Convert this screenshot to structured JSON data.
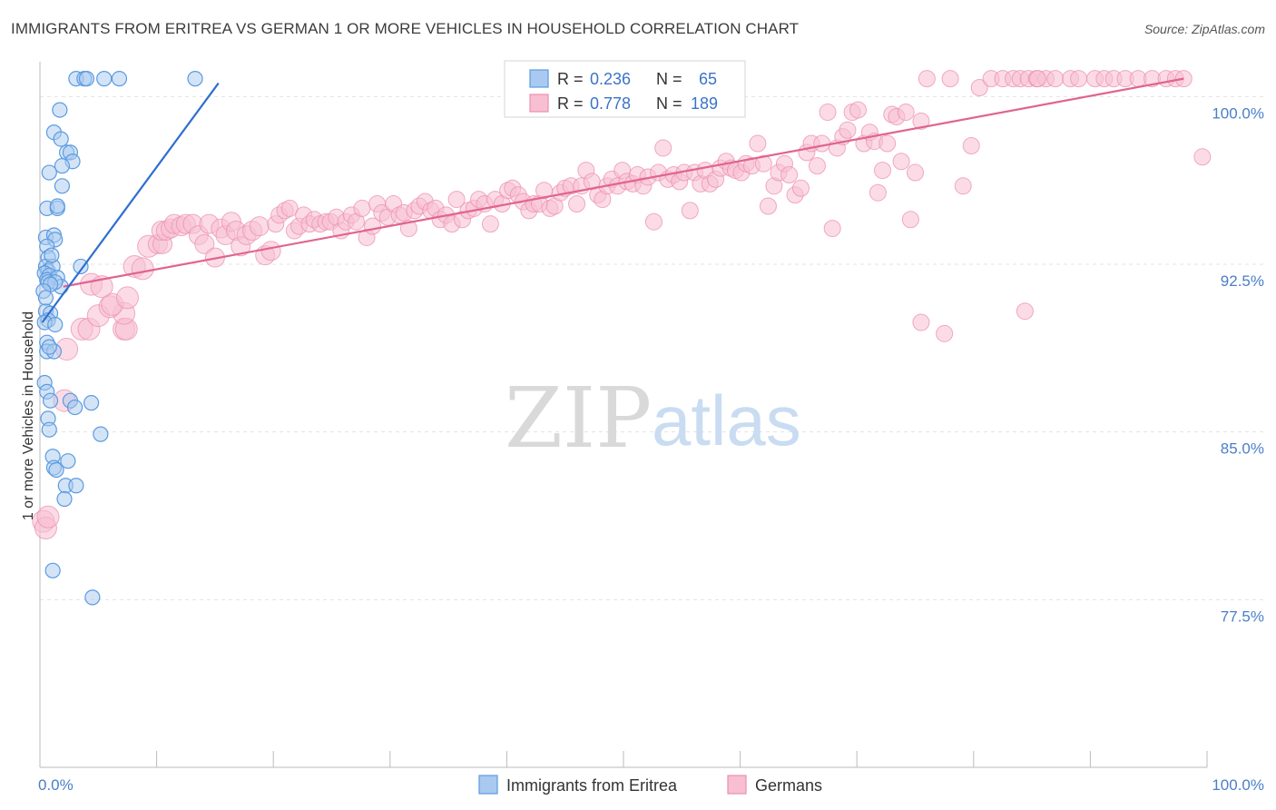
{
  "title": "IMMIGRANTS FROM ERITREA VS GERMAN 1 OR MORE VEHICLES IN HOUSEHOLD CORRELATION CHART",
  "source": "Source: ZipAtlas.com",
  "watermark": {
    "zip": "ZIP",
    "atlas": "atlas"
  },
  "colors": {
    "blue": "#5b9be0",
    "blue_fill": "#a9c9f0",
    "blue_line": "#2e6fcf",
    "pink": "#ec8fae",
    "pink_fill": "#f7bfd1",
    "pink_line": "#e0648f",
    "axis_text": "#4a7fc9",
    "grid": "#e3e3e3"
  },
  "legend_top": {
    "rows": [
      {
        "r_label": "R =",
        "r_value": "0.236",
        "n_label": "N =",
        "n_value": "65"
      },
      {
        "r_label": "R =",
        "r_value": "0.778",
        "n_label": "N =",
        "n_value": "189"
      }
    ]
  },
  "legend_bottom": [
    "Immigrants from Eritrea",
    "Germans"
  ],
  "chart_data": {
    "type": "scatter",
    "title": "IMMIGRANTS FROM ERITREA VS GERMAN 1 OR MORE VEHICLES IN HOUSEHOLD CORRELATION CHART",
    "xlabel": "",
    "ylabel": "1 or more Vehicles in Household",
    "xlim": [
      0,
      100
    ],
    "ylim": [
      70,
      101.8
    ],
    "x_tick_labels": [
      "0.0%",
      "100.0%"
    ],
    "y_ticks": [
      77.5,
      85.0,
      92.5,
      100.0
    ],
    "y_tick_labels": [
      "77.5%",
      "85.0%",
      "92.5%",
      "100.0%"
    ],
    "grid": true,
    "legend_placement": "top-center",
    "series": [
      {
        "name": "Immigrants from Eritrea",
        "r": 0.236,
        "n": 65,
        "trend": {
          "x0": 0.2,
          "y0": 89.9,
          "x1": 15.3,
          "y1": 100.6
        },
        "points": [
          [
            3.1,
            100.8
          ],
          [
            3.8,
            100.8
          ],
          [
            4.0,
            100.8
          ],
          [
            5.5,
            100.8
          ],
          [
            6.8,
            100.8
          ],
          [
            13.3,
            100.8
          ],
          [
            1.7,
            99.4
          ],
          [
            1.2,
            98.4
          ],
          [
            1.8,
            98.1
          ],
          [
            2.3,
            97.5
          ],
          [
            2.6,
            97.5
          ],
          [
            2.8,
            97.1
          ],
          [
            1.9,
            96.9
          ],
          [
            0.8,
            96.6
          ],
          [
            1.9,
            96.0
          ],
          [
            0.6,
            95.0
          ],
          [
            1.5,
            95.0
          ],
          [
            1.5,
            95.1
          ],
          [
            0.5,
            93.7
          ],
          [
            1.2,
            93.8
          ],
          [
            1.3,
            93.6
          ],
          [
            0.6,
            93.3
          ],
          [
            0.7,
            92.8
          ],
          [
            3.5,
            92.4
          ],
          [
            0.5,
            92.4
          ],
          [
            0.7,
            92.2
          ],
          [
            1.1,
            92.4
          ],
          [
            0.4,
            92.1
          ],
          [
            0.8,
            92.0
          ],
          [
            0.6,
            91.8
          ],
          [
            1.5,
            91.9
          ],
          [
            0.7,
            91.7
          ],
          [
            1.8,
            91.5
          ],
          [
            1.3,
            91.7
          ],
          [
            0.9,
            91.6
          ],
          [
            0.3,
            91.3
          ],
          [
            0.5,
            90.4
          ],
          [
            0.9,
            90.3
          ],
          [
            0.7,
            90.0
          ],
          [
            0.4,
            89.9
          ],
          [
            1.3,
            89.8
          ],
          [
            0.6,
            89.0
          ],
          [
            0.6,
            88.6
          ],
          [
            1.2,
            88.6
          ],
          [
            0.8,
            88.8
          ],
          [
            0.4,
            87.2
          ],
          [
            0.6,
            86.8
          ],
          [
            0.9,
            86.4
          ],
          [
            2.6,
            86.4
          ],
          [
            4.4,
            86.3
          ],
          [
            3.0,
            86.1
          ],
          [
            0.7,
            85.6
          ],
          [
            5.2,
            84.9
          ],
          [
            1.1,
            83.9
          ],
          [
            2.4,
            83.7
          ],
          [
            1.2,
            83.4
          ],
          [
            1.4,
            83.3
          ],
          [
            2.2,
            82.6
          ],
          [
            3.1,
            82.6
          ],
          [
            2.1,
            82.0
          ],
          [
            1.1,
            78.8
          ],
          [
            4.5,
            77.6
          ],
          [
            0.5,
            91.0
          ],
          [
            1.0,
            92.9
          ],
          [
            0.8,
            85.1
          ]
        ]
      },
      {
        "name": "Germans",
        "r": 0.778,
        "n": 189,
        "trend": {
          "x0": 2.0,
          "y0": 91.5,
          "x1": 98.0,
          "y1": 100.8
        },
        "points": [
          [
            0.3,
            81.0
          ],
          [
            0.5,
            80.7
          ],
          [
            0.7,
            81.2
          ],
          [
            2.1,
            86.4
          ],
          [
            2.3,
            88.7
          ],
          [
            3.6,
            89.6
          ],
          [
            4.2,
            89.6
          ],
          [
            7.2,
            89.6
          ],
          [
            7.4,
            89.6
          ],
          [
            7.2,
            90.3
          ],
          [
            5.0,
            90.2
          ],
          [
            6.0,
            90.6
          ],
          [
            6.2,
            90.7
          ],
          [
            4.4,
            91.6
          ],
          [
            5.3,
            91.5
          ],
          [
            7.5,
            91.0
          ],
          [
            8.1,
            92.4
          ],
          [
            8.8,
            92.3
          ],
          [
            9.3,
            93.3
          ],
          [
            10.1,
            93.4
          ],
          [
            10.5,
            93.4
          ],
          [
            10.4,
            94.0
          ],
          [
            10.8,
            94.0
          ],
          [
            11.2,
            94.1
          ],
          [
            11.5,
            94.3
          ],
          [
            12.1,
            94.2
          ],
          [
            12.5,
            94.3
          ],
          [
            13.1,
            94.3
          ],
          [
            13.6,
            93.8
          ],
          [
            14.1,
            93.4
          ],
          [
            14.5,
            94.3
          ],
          [
            15.0,
            92.8
          ],
          [
            15.5,
            94.1
          ],
          [
            15.9,
            93.8
          ],
          [
            16.4,
            94.4
          ],
          [
            16.8,
            94.0
          ],
          [
            17.2,
            93.3
          ],
          [
            17.7,
            93.8
          ],
          [
            18.2,
            94.0
          ],
          [
            18.8,
            94.2
          ],
          [
            19.3,
            92.9
          ],
          [
            19.8,
            93.1
          ],
          [
            20.2,
            94.3
          ],
          [
            20.5,
            94.7
          ],
          [
            21.0,
            94.9
          ],
          [
            21.4,
            95.0
          ],
          [
            21.8,
            94.0
          ],
          [
            22.2,
            94.2
          ],
          [
            22.6,
            94.7
          ],
          [
            23.1,
            94.3
          ],
          [
            23.5,
            94.5
          ],
          [
            24.0,
            94.3
          ],
          [
            24.5,
            94.4
          ],
          [
            24.9,
            94.4
          ],
          [
            25.4,
            94.6
          ],
          [
            25.8,
            94.0
          ],
          [
            26.2,
            94.4
          ],
          [
            26.7,
            94.7
          ],
          [
            27.1,
            94.4
          ],
          [
            27.6,
            95.0
          ],
          [
            28.0,
            93.7
          ],
          [
            28.5,
            94.2
          ],
          [
            28.9,
            95.2
          ],
          [
            29.3,
            94.8
          ],
          [
            29.8,
            94.6
          ],
          [
            30.3,
            95.2
          ],
          [
            30.8,
            94.7
          ],
          [
            31.2,
            94.8
          ],
          [
            31.6,
            94.1
          ],
          [
            32.1,
            94.9
          ],
          [
            32.5,
            95.1
          ],
          [
            33.0,
            95.3
          ],
          [
            33.5,
            94.9
          ],
          [
            33.9,
            95.0
          ],
          [
            34.3,
            94.5
          ],
          [
            34.8,
            94.7
          ],
          [
            35.3,
            94.3
          ],
          [
            35.7,
            95.4
          ],
          [
            36.2,
            94.5
          ],
          [
            36.7,
            94.9
          ],
          [
            37.2,
            95.0
          ],
          [
            37.6,
            95.4
          ],
          [
            38.1,
            95.2
          ],
          [
            38.6,
            94.3
          ],
          [
            39.0,
            95.4
          ],
          [
            39.6,
            95.2
          ],
          [
            40.1,
            95.8
          ],
          [
            40.5,
            95.9
          ],
          [
            41.0,
            95.6
          ],
          [
            41.4,
            95.3
          ],
          [
            41.9,
            94.9
          ],
          [
            42.3,
            95.2
          ],
          [
            42.8,
            95.2
          ],
          [
            43.2,
            95.8
          ],
          [
            43.7,
            95.0
          ],
          [
            44.1,
            95.1
          ],
          [
            44.6,
            95.7
          ],
          [
            45.0,
            95.9
          ],
          [
            45.5,
            96.0
          ],
          [
            46.0,
            95.2
          ],
          [
            46.4,
            96.0
          ],
          [
            46.8,
            96.7
          ],
          [
            47.3,
            96.2
          ],
          [
            47.8,
            95.6
          ],
          [
            48.2,
            95.4
          ],
          [
            48.6,
            96.0
          ],
          [
            49.0,
            96.3
          ],
          [
            49.5,
            96.0
          ],
          [
            49.9,
            96.7
          ],
          [
            50.3,
            96.2
          ],
          [
            50.8,
            96.1
          ],
          [
            51.2,
            96.5
          ],
          [
            51.7,
            96.0
          ],
          [
            52.1,
            96.4
          ],
          [
            52.6,
            94.4
          ],
          [
            53.0,
            96.6
          ],
          [
            53.4,
            97.7
          ],
          [
            53.8,
            96.3
          ],
          [
            54.3,
            96.5
          ],
          [
            54.8,
            96.2
          ],
          [
            55.2,
            96.6
          ],
          [
            55.7,
            94.9
          ],
          [
            56.1,
            96.6
          ],
          [
            56.6,
            96.1
          ],
          [
            57.0,
            96.7
          ],
          [
            57.4,
            96.1
          ],
          [
            57.9,
            96.3
          ],
          [
            58.3,
            96.8
          ],
          [
            58.8,
            97.1
          ],
          [
            59.2,
            96.8
          ],
          [
            59.6,
            96.7
          ],
          [
            60.1,
            96.6
          ],
          [
            60.5,
            97.0
          ],
          [
            61.0,
            96.9
          ],
          [
            61.5,
            97.9
          ],
          [
            62.0,
            97.0
          ],
          [
            62.4,
            95.1
          ],
          [
            62.9,
            96.0
          ],
          [
            63.3,
            96.6
          ],
          [
            63.8,
            97.0
          ],
          [
            64.2,
            96.5
          ],
          [
            64.7,
            95.6
          ],
          [
            65.2,
            95.9
          ],
          [
            65.7,
            97.5
          ],
          [
            66.1,
            97.9
          ],
          [
            66.6,
            96.9
          ],
          [
            67.0,
            97.9
          ],
          [
            67.5,
            99.3
          ],
          [
            67.9,
            94.1
          ],
          [
            68.3,
            97.7
          ],
          [
            68.8,
            98.2
          ],
          [
            69.2,
            98.5
          ],
          [
            69.6,
            99.3
          ],
          [
            70.1,
            99.4
          ],
          [
            70.6,
            97.9
          ],
          [
            71.1,
            98.4
          ],
          [
            71.5,
            98.0
          ],
          [
            71.8,
            95.7
          ],
          [
            72.2,
            96.7
          ],
          [
            72.6,
            97.9
          ],
          [
            73.0,
            99.2
          ],
          [
            73.4,
            99.1
          ],
          [
            73.8,
            97.1
          ],
          [
            74.2,
            99.3
          ],
          [
            74.6,
            94.5
          ],
          [
            75.0,
            96.6
          ],
          [
            75.5,
            98.9
          ],
          [
            76.0,
            100.8
          ],
          [
            78.0,
            100.8
          ],
          [
            79.1,
            96.0
          ],
          [
            79.8,
            97.8
          ],
          [
            80.5,
            100.4
          ],
          [
            81.5,
            100.8
          ],
          [
            82.5,
            100.8
          ],
          [
            83.4,
            100.8
          ],
          [
            84.0,
            100.8
          ],
          [
            84.7,
            100.8
          ],
          [
            85.4,
            100.8
          ],
          [
            86.2,
            100.8
          ],
          [
            87.0,
            100.8
          ],
          [
            88.3,
            100.8
          ],
          [
            89.0,
            100.8
          ],
          [
            90.4,
            100.8
          ],
          [
            91.2,
            100.8
          ],
          [
            92.0,
            100.8
          ],
          [
            93.0,
            100.8
          ],
          [
            94.1,
            100.8
          ],
          [
            95.3,
            100.8
          ],
          [
            96.5,
            100.8
          ],
          [
            97.3,
            100.8
          ],
          [
            98.0,
            100.8
          ],
          [
            75.5,
            89.9
          ],
          [
            77.5,
            89.4
          ],
          [
            84.4,
            90.4
          ],
          [
            99.6,
            97.3
          ],
          [
            85.5,
            100.8
          ]
        ]
      }
    ]
  }
}
